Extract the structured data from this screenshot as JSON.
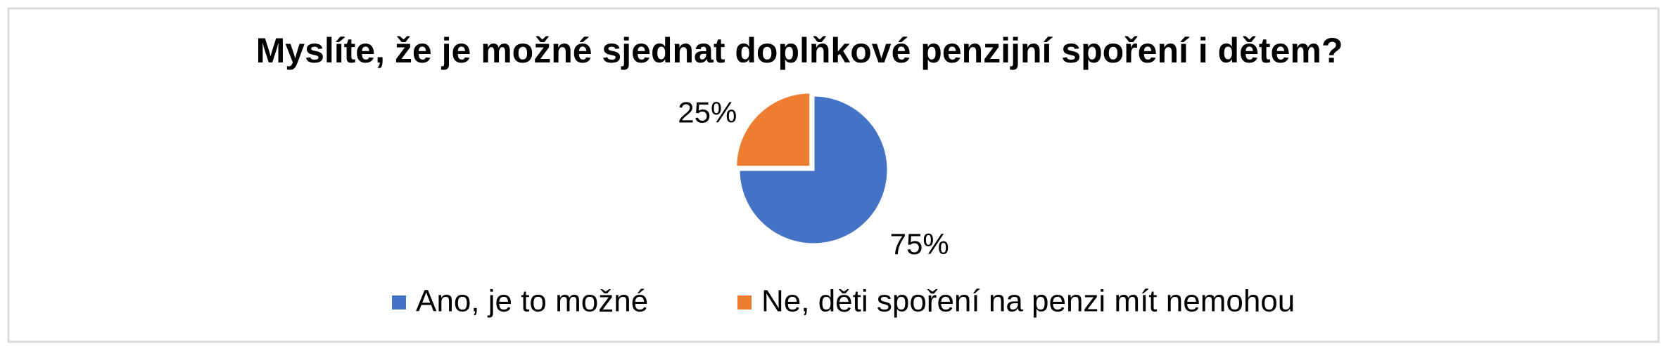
{
  "chart_data": {
    "type": "pie",
    "title": "Myslíte, že je možné sjednat doplňkové penzijní spoření i dětem?",
    "categories": [
      "Ano, je to možné",
      "Ne, děti spoření na penzi mít nemohou"
    ],
    "values": [
      75,
      25
    ],
    "value_labels": [
      "75%",
      "25%"
    ],
    "colors": [
      "#4472c4",
      "#ed7d31"
    ],
    "legend": "bottom"
  }
}
